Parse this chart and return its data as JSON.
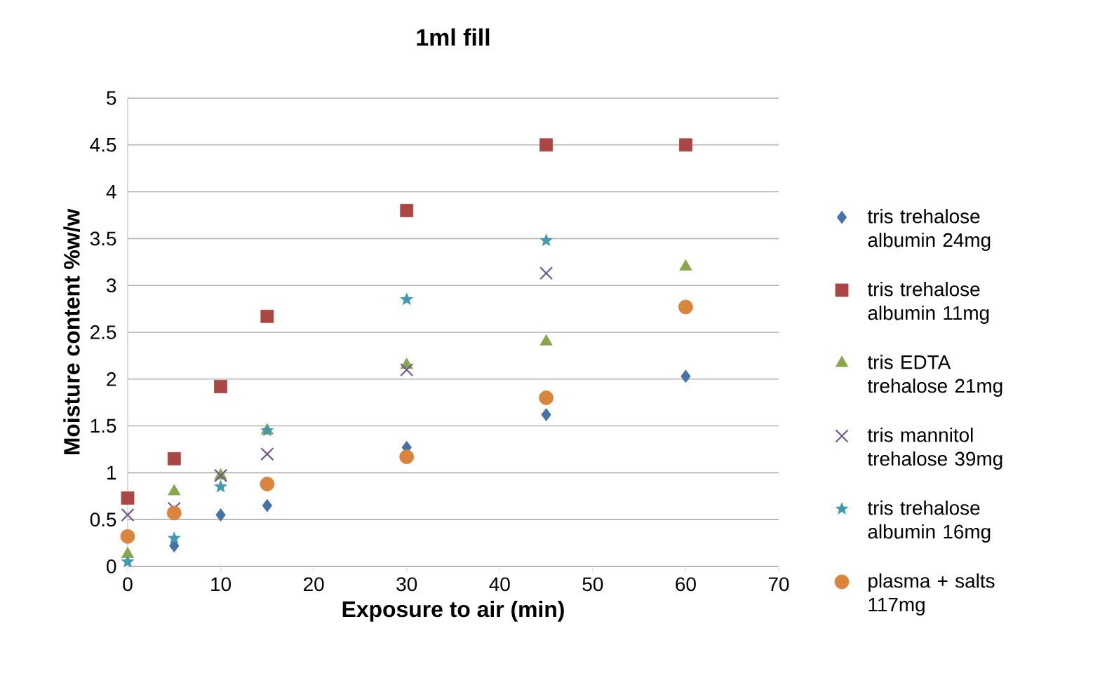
{
  "chart_data": {
    "type": "scatter",
    "title": "1ml fill",
    "xlabel": "Exposure to air (min)",
    "ylabel": "Moisture content %w/w",
    "x": [
      0,
      5,
      10,
      15,
      30,
      45,
      60
    ],
    "series": [
      {
        "name": "tris trehalose albumin 24mg",
        "color": "#4572a7",
        "marker": "diamond",
        "values": [
          null,
          0.22,
          0.55,
          0.65,
          1.27,
          1.62,
          2.03
        ]
      },
      {
        "name": "tris trehalose albumin 11mg",
        "color": "#aa4643",
        "marker": "square",
        "values": [
          0.73,
          1.15,
          1.92,
          2.67,
          3.8,
          4.5,
          4.5
        ]
      },
      {
        "name": "tris EDTA trehalose 21mg",
        "color": "#89a54e",
        "marker": "triangle",
        "values": [
          0.13,
          0.8,
          0.97,
          1.45,
          2.15,
          2.4,
          3.2
        ]
      },
      {
        "name": "tris mannitol trehalose 39mg",
        "color": "#71588f",
        "marker": "cross",
        "values": [
          0.55,
          0.62,
          0.97,
          1.2,
          2.1,
          3.13,
          null
        ]
      },
      {
        "name": "tris trehalose albumin 16mg",
        "color": "#4198af",
        "marker": "star",
        "values": [
          0.05,
          0.3,
          0.85,
          1.45,
          2.85,
          3.48,
          null
        ]
      },
      {
        "name": "plasma + salts 117mg",
        "color": "#db843d",
        "marker": "circle",
        "values": [
          0.32,
          0.57,
          null,
          0.88,
          1.17,
          1.8,
          2.77
        ]
      }
    ],
    "xlim": [
      0,
      70
    ],
    "xticks": [
      0,
      10,
      20,
      30,
      40,
      50,
      60,
      70
    ],
    "ylim": [
      0,
      5
    ],
    "yticks": [
      0,
      0.5,
      1,
      1.5,
      2,
      2.5,
      3,
      3.5,
      4,
      4.5,
      5
    ],
    "grid": "y",
    "legend": "right"
  }
}
